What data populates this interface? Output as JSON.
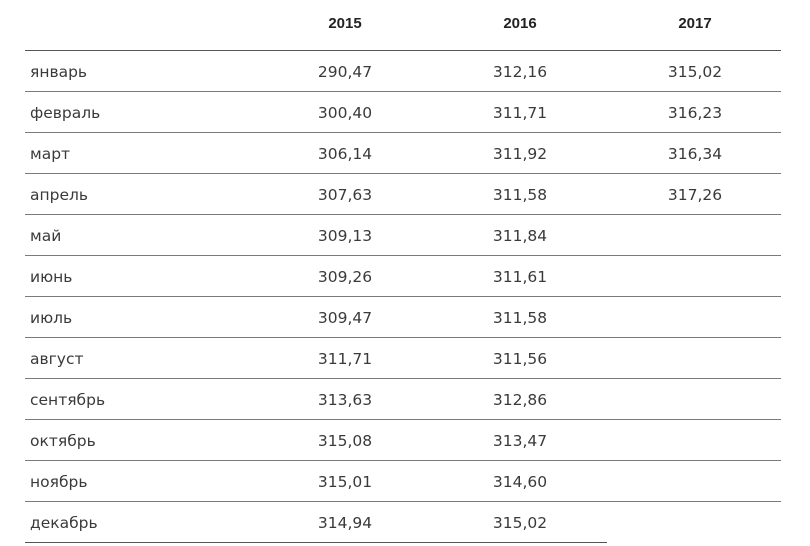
{
  "table": {
    "headers": [
      "2015",
      "2016",
      "2017"
    ],
    "rows": [
      {
        "month": "январь",
        "v2015": "290,47",
        "v2016": "312,16",
        "v2017": "315,02"
      },
      {
        "month": "февраль",
        "v2015": "300,40",
        "v2016": "311,71",
        "v2017": "316,23"
      },
      {
        "month": "март",
        "v2015": "306,14",
        "v2016": "311,92",
        "v2017": "316,34"
      },
      {
        "month": "апрель",
        "v2015": "307,63",
        "v2016": "311,58",
        "v2017": "317,26"
      },
      {
        "month": "май",
        "v2015": "309,13",
        "v2016": "311,84",
        "v2017": ""
      },
      {
        "month": "июнь",
        "v2015": "309,26",
        "v2016": "311,61",
        "v2017": ""
      },
      {
        "month": "июль",
        "v2015": "309,47",
        "v2016": "311,58",
        "v2017": ""
      },
      {
        "month": "август",
        "v2015": "311,71",
        "v2016": "311,56",
        "v2017": ""
      },
      {
        "month": "сентябрь",
        "v2015": "313,63",
        "v2016": "312,86",
        "v2017": ""
      },
      {
        "month": "октябрь",
        "v2015": "315,08",
        "v2016": "313,47",
        "v2017": ""
      },
      {
        "month": "ноябрь",
        "v2015": "315,01",
        "v2016": "314,60",
        "v2017": ""
      },
      {
        "month": "декабрь",
        "v2015": "314,94",
        "v2016": "315,02",
        "v2017": ""
      }
    ]
  }
}
